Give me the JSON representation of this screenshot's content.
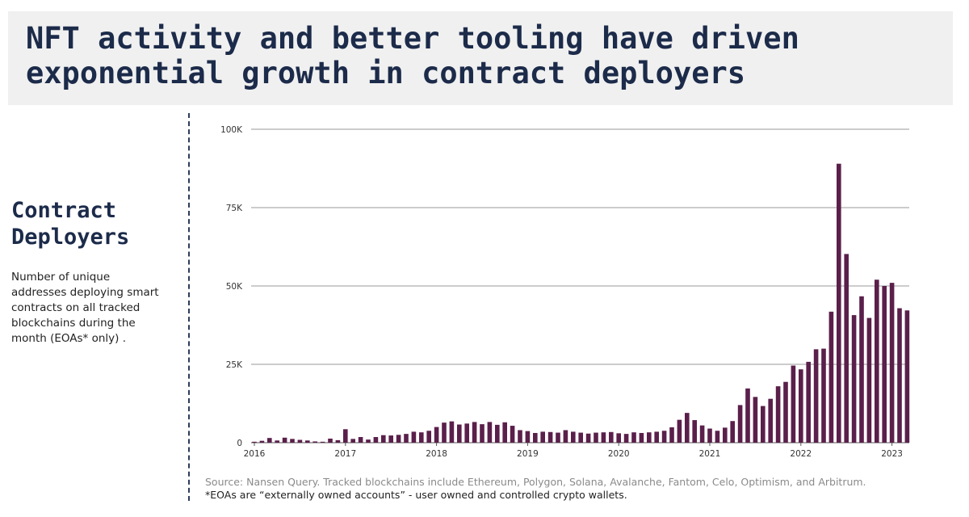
{
  "header": {
    "title": "NFT activity and better tooling have driven\nexponential growth in contract deployers"
  },
  "sidebar": {
    "title": "Contract\nDeployers",
    "description": "Number of unique addresses deploying smart contracts on all tracked blockchains during the month (EOAs* only) ."
  },
  "footer": {
    "source": "Source: Nansen Query. Tracked blockchains include Ethereum, Polygon, Solana, Avalanche, Fantom, Celo, Optimism, and Arbitrum.",
    "note": "*EOAs are “externally owned accounts” - user owned and controlled crypto wallets."
  },
  "colors": {
    "bar": "#5a1f4a",
    "grid": "#9a9a9a",
    "title": "#1c2b4a",
    "header_bg": "#f0f0f0"
  },
  "chart_data": {
    "type": "bar",
    "x_start": "2016-01",
    "x_interval": "month",
    "ylim": [
      0,
      100000
    ],
    "y_ticks": [
      0,
      25000,
      50000,
      75000,
      100000
    ],
    "y_tick_labels": [
      "0",
      "25K",
      "50K",
      "75K",
      "100K"
    ],
    "x_tick_labels": [
      "2016",
      "2017",
      "2018",
      "2019",
      "2020",
      "2021",
      "2022",
      "2023"
    ],
    "grid": true,
    "values": [
      300,
      600,
      1500,
      700,
      1600,
      1200,
      900,
      700,
      400,
      300,
      1300,
      800,
      4300,
      1200,
      1800,
      1000,
      1800,
      2400,
      2300,
      2500,
      2800,
      3500,
      3300,
      3800,
      5000,
      6400,
      6800,
      5800,
      6100,
      6600,
      5900,
      6600,
      5700,
      6500,
      5400,
      4000,
      3700,
      3100,
      3500,
      3400,
      3200,
      4000,
      3500,
      3200,
      2900,
      3200,
      3300,
      3400,
      3000,
      2800,
      3300,
      3100,
      3300,
      3500,
      3800,
      4900,
      7300,
      9500,
      7200,
      5500,
      4500,
      3800,
      4800,
      6900,
      12000,
      17300,
      14600,
      11700,
      14000,
      18000,
      19400,
      24600,
      23400,
      25800,
      29800,
      30000,
      41800,
      89000,
      60200,
      40700,
      46700,
      39800,
      52000,
      50000,
      51000,
      42900,
      42200
    ]
  }
}
